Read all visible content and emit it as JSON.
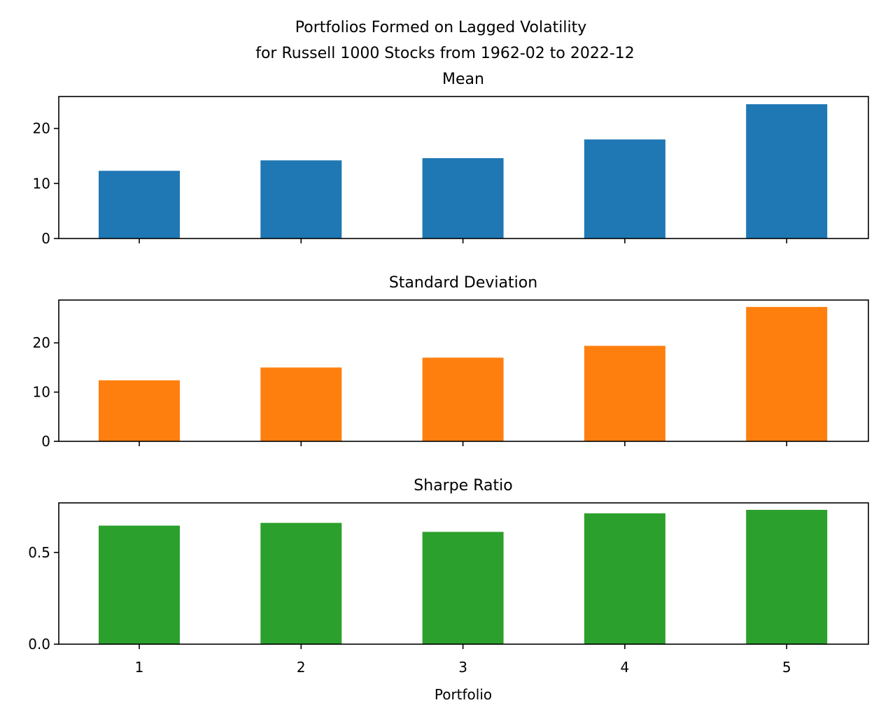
{
  "title_lines": [
    "Portfolios Formed on Lagged Volatility",
    "for Russell 1000 Stocks from 1962-02 to 2022-12"
  ],
  "xlabel": "Portfolio",
  "chart_data": [
    {
      "type": "bar",
      "title": "Mean",
      "categories": [
        "1",
        "2",
        "3",
        "4",
        "5"
      ],
      "values": [
        12.3,
        14.2,
        14.6,
        18.0,
        24.4
      ],
      "ylim": [
        0,
        25.8
      ],
      "yticks": [
        0,
        10,
        20
      ],
      "ytick_labels": [
        "0",
        "10",
        "20"
      ],
      "color": "#1f77b4",
      "show_xtick_labels": false,
      "xlabel": "",
      "grid": false
    },
    {
      "type": "bar",
      "title": "Standard Deviation",
      "categories": [
        "1",
        "2",
        "3",
        "4",
        "5"
      ],
      "values": [
        12.4,
        15.0,
        17.0,
        19.4,
        27.3
      ],
      "ylim": [
        0,
        28.7
      ],
      "yticks": [
        0,
        10,
        20
      ],
      "ytick_labels": [
        "0",
        "10",
        "20"
      ],
      "color": "#ff7f0e",
      "show_xtick_labels": false,
      "xlabel": "",
      "grid": false
    },
    {
      "type": "bar",
      "title": "Sharpe Ratio",
      "categories": [
        "1",
        "2",
        "3",
        "4",
        "5"
      ],
      "values": [
        0.646,
        0.661,
        0.612,
        0.713,
        0.732
      ],
      "ylim": [
        0,
        0.77
      ],
      "yticks": [
        0,
        0.5
      ],
      "ytick_labels": [
        "0.0",
        "0.5"
      ],
      "color": "#2ca02c",
      "show_xtick_labels": true,
      "xlabel": "Portfolio",
      "grid": false
    }
  ]
}
